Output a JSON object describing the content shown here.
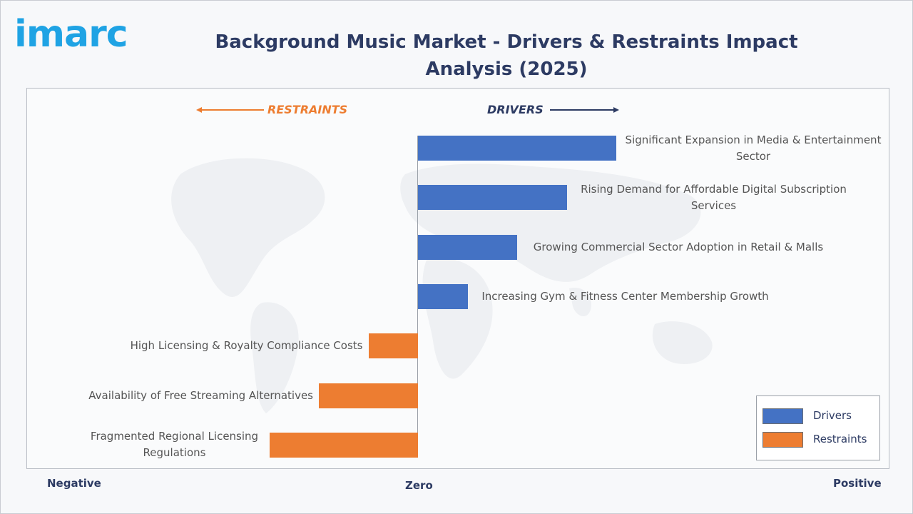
{
  "header": {
    "logo_text": "imarc",
    "title": "Background Music Market - Drivers & Restraints Impact Analysis (2025)"
  },
  "direction_labels": {
    "restraints": "RESTRAINTS",
    "drivers": "DRIVERS"
  },
  "axis_words": {
    "negative": "Negative",
    "zero": "Zero",
    "positive": "Positive"
  },
  "colors": {
    "drivers": "#4472c4",
    "restraints": "#ed7d31",
    "title": "#2d3b63"
  },
  "legend": [
    {
      "label": "Drivers",
      "color": "#4472c4"
    },
    {
      "label": "Restraints",
      "color": "#ed7d31"
    }
  ],
  "chart_data": {
    "type": "bar",
    "orientation": "horizontal",
    "title": "Background Music Market - Drivers & Restraints Impact Analysis (2025)",
    "xlabel": "",
    "ylabel": "",
    "xlim": [
      -6,
      6
    ],
    "legend_position": "bottom-right",
    "grid": false,
    "categories": [
      "Significant Expansion in Media & Entertainment Sector",
      "Rising Demand for Affordable Digital Subscription Services",
      "Growing Commercial Sector Adoption in Retail & Malls",
      "Increasing Gym & Fitness Center Membership Growth",
      "High Licensing & Royalty Compliance Costs",
      "Availability of Free Streaming Alternatives",
      "Fragmented Regional Licensing Regulations"
    ],
    "series": [
      {
        "name": "Drivers",
        "values": [
          4,
          3,
          2,
          1,
          null,
          null,
          null
        ]
      },
      {
        "name": "Restraints",
        "values": [
          null,
          null,
          null,
          null,
          -1,
          -2,
          -3
        ]
      }
    ]
  }
}
